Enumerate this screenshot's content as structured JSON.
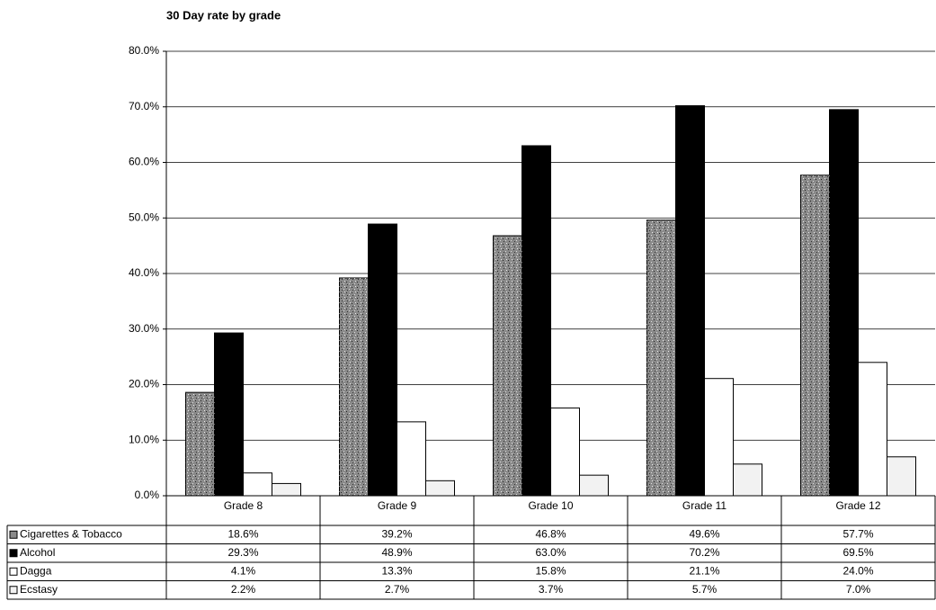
{
  "chart_data": {
    "type": "bar",
    "title": "30 Day rate by grade",
    "categories": [
      "Grade 8",
      "Grade 9",
      "Grade 10",
      "Grade 11",
      "Grade 12"
    ],
    "series": [
      {
        "name": "Cigarettes & Tobacco",
        "color": "#8a8a8a",
        "values": [
          18.6,
          39.2,
          46.8,
          49.6,
          57.7
        ],
        "value_labels": [
          "18.6%",
          "39.2%",
          "46.8%",
          "49.6%",
          "57.7%"
        ]
      },
      {
        "name": "Alcohol",
        "color": "#000000",
        "values": [
          29.3,
          48.9,
          63.0,
          70.2,
          69.5
        ],
        "value_labels": [
          "29.3%",
          "48.9%",
          "63.0%",
          "70.2%",
          "69.5%"
        ]
      },
      {
        "name": "Dagga",
        "color": "#ffffff",
        "values": [
          4.1,
          13.3,
          15.8,
          21.1,
          24.0
        ],
        "value_labels": [
          "4.1%",
          "13.3%",
          "15.8%",
          "21.1%",
          "24.0%"
        ]
      },
      {
        "name": "Ecstasy",
        "color": "#f2f2f2",
        "values": [
          2.2,
          2.7,
          3.7,
          5.7,
          7.0
        ],
        "value_labels": [
          "2.2%",
          "2.7%",
          "3.7%",
          "5.7%",
          "7.0%"
        ]
      }
    ],
    "ylim": [
      0,
      80
    ],
    "yticks": [
      {
        "value": 0,
        "label": "0.0%"
      },
      {
        "value": 10,
        "label": "10.0%"
      },
      {
        "value": 20,
        "label": "20.0%"
      },
      {
        "value": 30,
        "label": "30.0%"
      },
      {
        "value": 40,
        "label": "40.0%"
      },
      {
        "value": 50,
        "label": "50.0%"
      },
      {
        "value": 60,
        "label": "60.0%"
      },
      {
        "value": 70,
        "label": "70.0%"
      },
      {
        "value": 80,
        "label": "80.0%"
      }
    ],
    "grid": true
  }
}
